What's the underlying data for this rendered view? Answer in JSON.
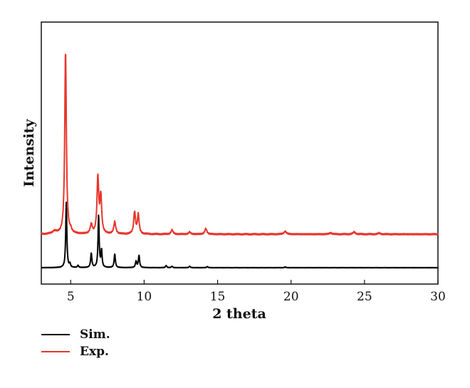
{
  "chart_data": {
    "type": "line",
    "xlabel": "2 theta",
    "ylabel": "Intensity",
    "xlim": [
      3,
      30
    ],
    "x_ticks": [
      5,
      10,
      15,
      20,
      25,
      30
    ],
    "y_ticks_shown": false,
    "grid": false,
    "legend_position": "below-left",
    "series": [
      {
        "name": "Sim.",
        "color": "#000000",
        "baseline": 0,
        "peaks": [
          {
            "x": 4.7,
            "y": 92,
            "w": 0.045
          },
          {
            "x": 4.95,
            "y": 5,
            "w": 0.04
          },
          {
            "x": 5.5,
            "y": 3,
            "w": 0.05
          },
          {
            "x": 6.4,
            "y": 20,
            "w": 0.05
          },
          {
            "x": 6.9,
            "y": 73,
            "w": 0.045
          },
          {
            "x": 7.1,
            "y": 24,
            "w": 0.045
          },
          {
            "x": 8.0,
            "y": 19,
            "w": 0.05
          },
          {
            "x": 9.45,
            "y": 9,
            "w": 0.05
          },
          {
            "x": 9.65,
            "y": 17,
            "w": 0.05
          },
          {
            "x": 11.5,
            "y": 3,
            "w": 0.05
          },
          {
            "x": 11.9,
            "y": 2,
            "w": 0.05
          },
          {
            "x": 13.1,
            "y": 2,
            "w": 0.05
          },
          {
            "x": 14.3,
            "y": 1.5,
            "w": 0.05
          },
          {
            "x": 19.6,
            "y": 1,
            "w": 0.05
          }
        ]
      },
      {
        "name": "Exp.",
        "color": "#e8352b",
        "baseline": 47,
        "peaks": [
          {
            "x": 3.9,
            "y": 4,
            "w": 0.15
          },
          {
            "x": 4.65,
            "y": 257,
            "w": 0.065
          },
          {
            "x": 5.0,
            "y": 4,
            "w": 0.08
          },
          {
            "x": 6.4,
            "y": 13,
            "w": 0.08
          },
          {
            "x": 6.85,
            "y": 79,
            "w": 0.07
          },
          {
            "x": 7.05,
            "y": 52,
            "w": 0.07
          },
          {
            "x": 8.0,
            "y": 17,
            "w": 0.08
          },
          {
            "x": 9.35,
            "y": 31,
            "w": 0.07
          },
          {
            "x": 9.6,
            "y": 27,
            "w": 0.07
          },
          {
            "x": 11.9,
            "y": 6,
            "w": 0.08
          },
          {
            "x": 13.1,
            "y": 3,
            "w": 0.08
          },
          {
            "x": 14.2,
            "y": 8,
            "w": 0.08
          },
          {
            "x": 19.6,
            "y": 4,
            "w": 0.1
          },
          {
            "x": 22.7,
            "y": 2,
            "w": 0.1
          },
          {
            "x": 24.3,
            "y": 3,
            "w": 0.1
          },
          {
            "x": 26.0,
            "y": 1.5,
            "w": 0.1
          }
        ]
      }
    ]
  }
}
